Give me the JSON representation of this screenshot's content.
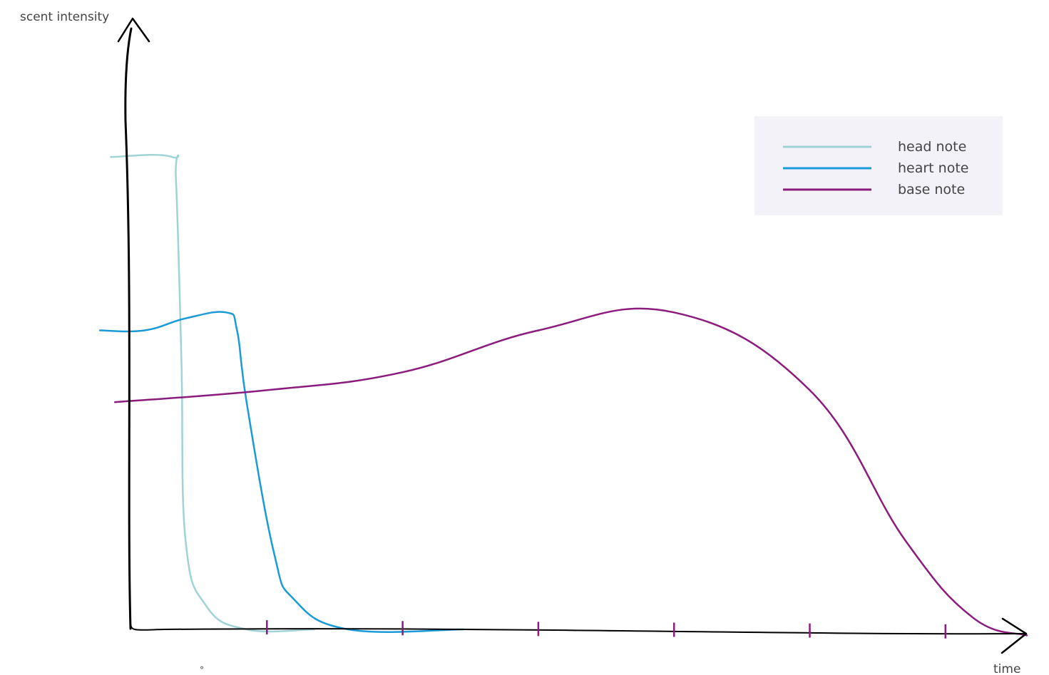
{
  "chart_data": {
    "type": "line",
    "title": "",
    "xlabel": "time",
    "ylabel": "scent intensity",
    "xlim": [
      0,
      6.6
    ],
    "ylim": [
      0,
      1.0
    ],
    "tick_count": 6,
    "grid": false,
    "legend_position": "top-right",
    "stray_mark": "°",
    "series": [
      {
        "name": "head note",
        "color": "#9fd3d6",
        "points": [
          [
            -0.15,
            0.79
          ],
          [
            0.3,
            0.79
          ],
          [
            0.33,
            0.75
          ],
          [
            0.37,
            0.45
          ],
          [
            0.4,
            0.15
          ],
          [
            0.55,
            0.04
          ],
          [
            0.85,
            0.0
          ],
          [
            1.35,
            0.0
          ]
        ]
      },
      {
        "name": "heart note",
        "color": "#1a9ad6",
        "points": [
          [
            -0.23,
            0.5
          ],
          [
            0.1,
            0.5
          ],
          [
            0.4,
            0.52
          ],
          [
            0.7,
            0.53
          ],
          [
            0.78,
            0.5
          ],
          [
            0.85,
            0.38
          ],
          [
            1.05,
            0.13
          ],
          [
            1.2,
            0.05
          ],
          [
            1.6,
            0.0
          ],
          [
            2.45,
            0.0
          ]
        ]
      },
      {
        "name": "base note",
        "color": "#8c1b7e",
        "points": [
          [
            -0.12,
            0.38
          ],
          [
            1,
            0.4
          ],
          [
            2,
            0.43
          ],
          [
            3,
            0.5
          ],
          [
            4,
            0.53
          ],
          [
            5,
            0.4
          ],
          [
            5.7,
            0.15
          ],
          [
            6.2,
            0.02
          ],
          [
            6.6,
            -0.01
          ]
        ]
      }
    ]
  }
}
